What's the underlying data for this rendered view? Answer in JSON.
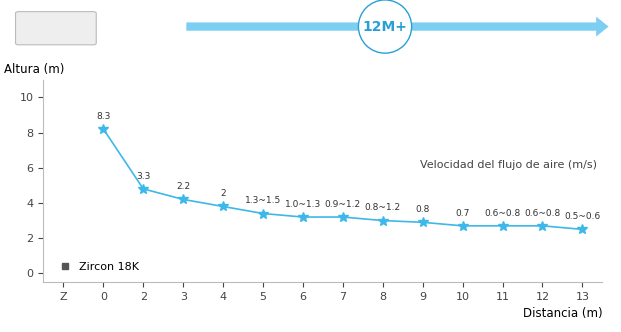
{
  "chart_data": {
    "type": "line",
    "x_label": "Distancia (m)",
    "y_label": "Altura (m)",
    "badge": "12M+",
    "flow_label": "Velocidad del flujo de aire (m/s)",
    "categories": [
      "Z",
      "0",
      "2",
      "3",
      "4",
      "5",
      "6",
      "7",
      "8",
      "9",
      "10",
      "11",
      "12",
      "13"
    ],
    "series": [
      {
        "name": "Zircon 18K",
        "color": "#3db8e8",
        "marker": "*",
        "line_style": "solid",
        "values": [
          null,
          8.2,
          4.8,
          4.2,
          3.8,
          3.4,
          3.2,
          3.2,
          3.0,
          2.9,
          2.7,
          2.7,
          2.7,
          2.5
        ]
      }
    ],
    "annotations": [
      null,
      "8.3",
      "3.3",
      "2.2",
      "2",
      "1.3~1.5",
      "1.0~1.3",
      "0.9~1.2",
      "0.8~1.2",
      "0.8",
      "0.7",
      "0.6~0.8",
      "0.6~0.8",
      "0.5~0.6"
    ],
    "ylim": [
      -0.5,
      11
    ],
    "yticks": [
      0,
      2,
      4,
      6,
      8,
      10
    ],
    "grid": false,
    "legend": "lower left"
  }
}
